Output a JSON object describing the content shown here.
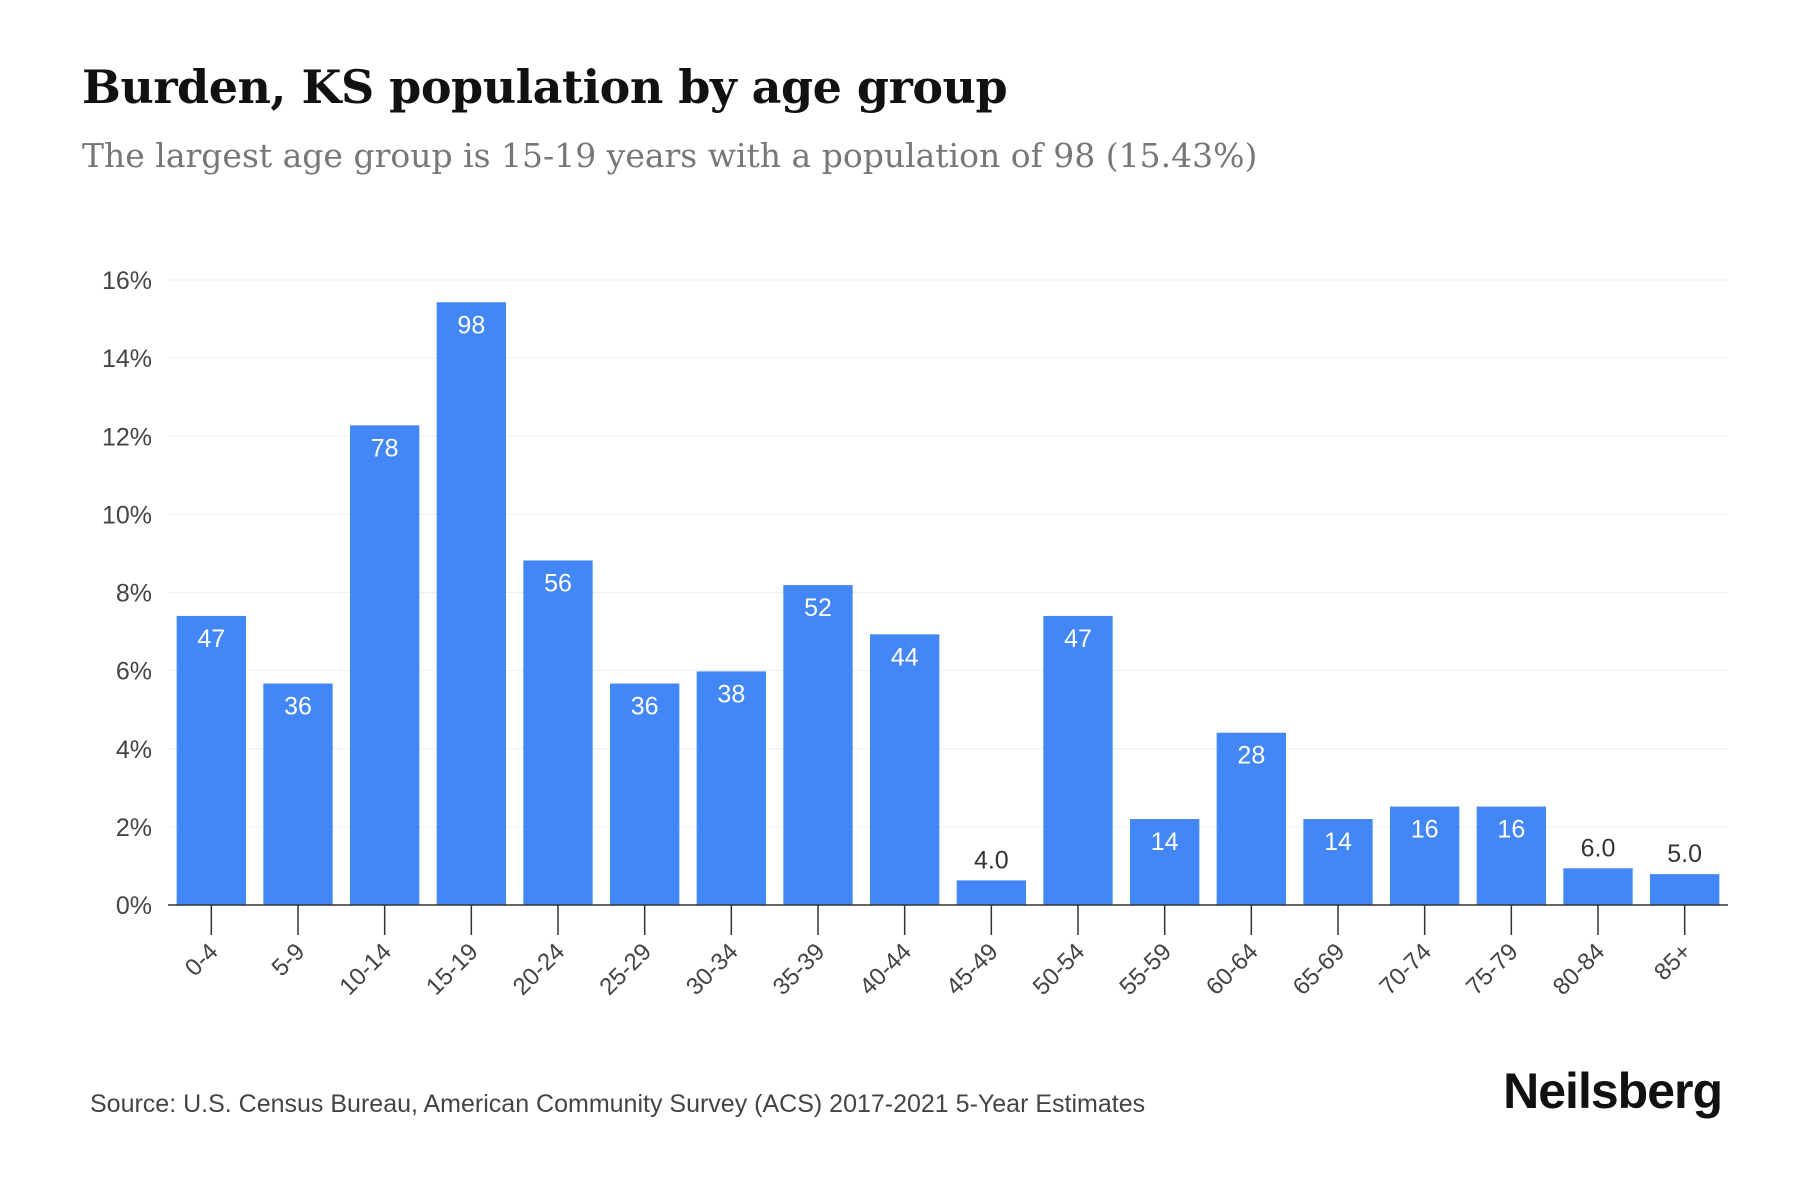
{
  "header": {
    "title": "Burden, KS population by age group",
    "subtitle": "The largest age group is 15-19 years with a population of 98 (15.43%)"
  },
  "footer": {
    "source": "Source: U.S. Census Bureau, American Community Survey (ACS) 2017-2021 5-Year Estimates",
    "brand": "Neilsberg"
  },
  "colors": {
    "bar": "#4287f5",
    "grid": "#eeeeee",
    "axis": "#333333",
    "bar_label_inside": "#ffffff",
    "bar_label_outside": "#333333"
  },
  "chart_data": {
    "type": "bar",
    "categories": [
      "0-4",
      "5-9",
      "10-14",
      "15-19",
      "20-24",
      "25-29",
      "30-34",
      "35-39",
      "40-44",
      "45-49",
      "50-54",
      "55-59",
      "60-64",
      "65-69",
      "70-74",
      "75-79",
      "80-84",
      "85+"
    ],
    "values": [
      7.4,
      5.67,
      12.28,
      15.43,
      8.82,
      5.67,
      5.98,
      8.19,
      6.93,
      0.63,
      7.4,
      2.2,
      4.41,
      2.2,
      2.52,
      2.52,
      0.94,
      0.79
    ],
    "data_labels": [
      "47",
      "36",
      "78",
      "98",
      "56",
      "36",
      "38",
      "52",
      "44",
      "4.0",
      "47",
      "14",
      "28",
      "14",
      "16",
      "16",
      "6.0",
      "5.0"
    ],
    "ylim": [
      0,
      16
    ],
    "yticks": [
      0,
      2,
      4,
      6,
      8,
      10,
      12,
      14,
      16
    ],
    "ytick_labels": [
      "0%",
      "2%",
      "4%",
      "6%",
      "8%",
      "10%",
      "12%",
      "14%",
      "16%"
    ],
    "xlabel": "",
    "ylabel": "",
    "grid": true
  }
}
